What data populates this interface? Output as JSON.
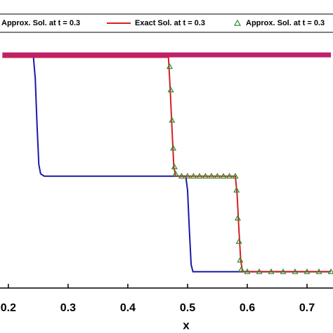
{
  "chart_data": {
    "type": "line",
    "xlabel": "x",
    "xlim": [
      0.186,
      0.7435
    ],
    "ylim": [
      0,
      1.1
    ],
    "xticks": [
      0.2,
      0.3,
      0.4,
      0.5,
      0.6,
      0.7
    ],
    "series": [
      {
        "name": "Approx. Sol. at t = 0.3",
        "color": "#1a1aa8",
        "style": "line",
        "x": [
          0.19,
          0.242,
          0.245,
          0.248,
          0.251,
          0.254,
          0.26,
          0.497,
          0.5,
          0.503,
          0.506,
          0.509,
          0.52,
          0.74
        ],
        "values": [
          0.99,
          0.99,
          0.9,
          0.7,
          0.53,
          0.49,
          0.48,
          0.48,
          0.42,
          0.25,
          0.1,
          0.07,
          0.07,
          0.07
        ]
      },
      {
        "name": "Exact Sol. at t = 0.3",
        "color": "#d42020",
        "style": "line",
        "x": [
          0.19,
          0.468,
          0.471,
          0.474,
          0.477,
          0.48,
          0.58,
          0.583,
          0.586,
          0.589,
          0.592,
          0.74
        ],
        "values": [
          0.99,
          0.99,
          0.85,
          0.68,
          0.52,
          0.48,
          0.48,
          0.4,
          0.25,
          0.12,
          0.07,
          0.07
        ]
      },
      {
        "name": "Approx. Sol. at t = 0.3",
        "color": "#2e8b2e",
        "style": "triangles",
        "x": [
          0.47,
          0.472,
          0.474,
          0.476,
          0.478,
          0.48,
          0.49,
          0.5,
          0.51,
          0.52,
          0.53,
          0.54,
          0.55,
          0.56,
          0.57,
          0.58,
          0.582,
          0.584,
          0.586,
          0.588,
          0.59,
          0.6,
          0.62,
          0.64,
          0.66,
          0.68,
          0.7,
          0.72,
          0.74
        ],
        "values": [
          0.95,
          0.85,
          0.72,
          0.6,
          0.52,
          0.49,
          0.48,
          0.48,
          0.48,
          0.48,
          0.48,
          0.48,
          0.48,
          0.48,
          0.48,
          0.48,
          0.42,
          0.3,
          0.2,
          0.12,
          0.08,
          0.07,
          0.07,
          0.07,
          0.07,
          0.07,
          0.07,
          0.07,
          0.07
        ]
      },
      {
        "color": "#c0206a",
        "style": "band",
        "x": [
          0.19,
          0.74
        ],
        "values": [
          1.0,
          1.0
        ]
      }
    ]
  }
}
